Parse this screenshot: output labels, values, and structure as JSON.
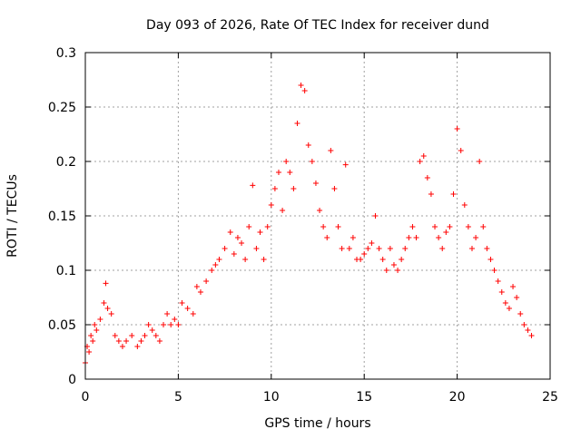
{
  "chart_data": {
    "type": "scatter",
    "title": "Day 093 of 2026, Rate Of TEC Index for receiver dund",
    "xlabel": "GPS time / hours",
    "ylabel": "ROTI / TECUs",
    "xlim": [
      0,
      25
    ],
    "ylim": [
      0,
      0.3
    ],
    "xticks": [
      0,
      5,
      10,
      15,
      20,
      25
    ],
    "yticks": [
      0,
      0.05,
      0.1,
      0.15,
      0.2,
      0.25,
      0.3
    ],
    "xtick_labels": [
      "0",
      "5",
      "10",
      "15",
      "20",
      "25"
    ],
    "ytick_labels": [
      "0",
      "0.05",
      "0.1",
      "0.15",
      "0.2",
      "0.25",
      "0.3"
    ],
    "grid": true,
    "legend": "none",
    "marker": "+",
    "color": "#ff0000",
    "series": [
      {
        "x": [
          0.0,
          0.1,
          0.2,
          0.3,
          0.4,
          0.5,
          0.6,
          0.8,
          1.0,
          1.1,
          1.2,
          1.4,
          1.6,
          1.8,
          2.0,
          2.2,
          2.5,
          2.8,
          3.0,
          3.2,
          3.4,
          3.6,
          3.8,
          4.0,
          4.2,
          4.4,
          4.6,
          4.8,
          5.0,
          5.2,
          5.5,
          5.8,
          6.0,
          6.2,
          6.5,
          6.8,
          7.0,
          7.2,
          7.5,
          7.8,
          8.0,
          8.2,
          8.4,
          8.6,
          8.8,
          9.0,
          9.2,
          9.4,
          9.6,
          9.8,
          10.0,
          10.2,
          10.4,
          10.6,
          10.8,
          11.0,
          11.2,
          11.4,
          11.6,
          11.8,
          12.0,
          12.2,
          12.4,
          12.6,
          12.8,
          13.0,
          13.2,
          13.4,
          13.6,
          13.8,
          14.0,
          14.2,
          14.4,
          14.6,
          14.8,
          15.0,
          15.2,
          15.4,
          15.6,
          15.8,
          16.0,
          16.2,
          16.4,
          16.6,
          16.8,
          17.0,
          17.2,
          17.4,
          17.6,
          17.8,
          18.0,
          18.2,
          18.4,
          18.6,
          18.8,
          19.0,
          19.2,
          19.4,
          19.6,
          19.8,
          20.0,
          20.2,
          20.4,
          20.6,
          20.8,
          21.0,
          21.2,
          21.4,
          21.6,
          21.8,
          22.0,
          22.2,
          22.4,
          22.6,
          22.8,
          23.0,
          23.2,
          23.4,
          23.6,
          23.8,
          24.0
        ],
        "y": [
          0.015,
          0.03,
          0.025,
          0.04,
          0.035,
          0.05,
          0.045,
          0.055,
          0.07,
          0.088,
          0.065,
          0.06,
          0.04,
          0.035,
          0.03,
          0.035,
          0.04,
          0.03,
          0.035,
          0.04,
          0.05,
          0.045,
          0.04,
          0.035,
          0.05,
          0.06,
          0.05,
          0.055,
          0.05,
          0.07,
          0.065,
          0.06,
          0.085,
          0.08,
          0.09,
          0.1,
          0.105,
          0.11,
          0.12,
          0.135,
          0.115,
          0.13,
          0.125,
          0.11,
          0.14,
          0.178,
          0.12,
          0.135,
          0.11,
          0.14,
          0.16,
          0.175,
          0.19,
          0.155,
          0.2,
          0.19,
          0.175,
          0.235,
          0.27,
          0.265,
          0.215,
          0.2,
          0.18,
          0.155,
          0.14,
          0.13,
          0.21,
          0.175,
          0.14,
          0.12,
          0.197,
          0.12,
          0.13,
          0.11,
          0.11,
          0.115,
          0.12,
          0.125,
          0.15,
          0.12,
          0.11,
          0.1,
          0.12,
          0.105,
          0.1,
          0.11,
          0.12,
          0.13,
          0.14,
          0.13,
          0.2,
          0.205,
          0.185,
          0.17,
          0.14,
          0.13,
          0.12,
          0.135,
          0.14,
          0.17,
          0.23,
          0.21,
          0.16,
          0.14,
          0.12,
          0.13,
          0.2,
          0.14,
          0.12,
          0.11,
          0.1,
          0.09,
          0.08,
          0.07,
          0.065,
          0.085,
          0.075,
          0.06,
          0.05,
          0.045,
          0.04
        ]
      }
    ]
  }
}
